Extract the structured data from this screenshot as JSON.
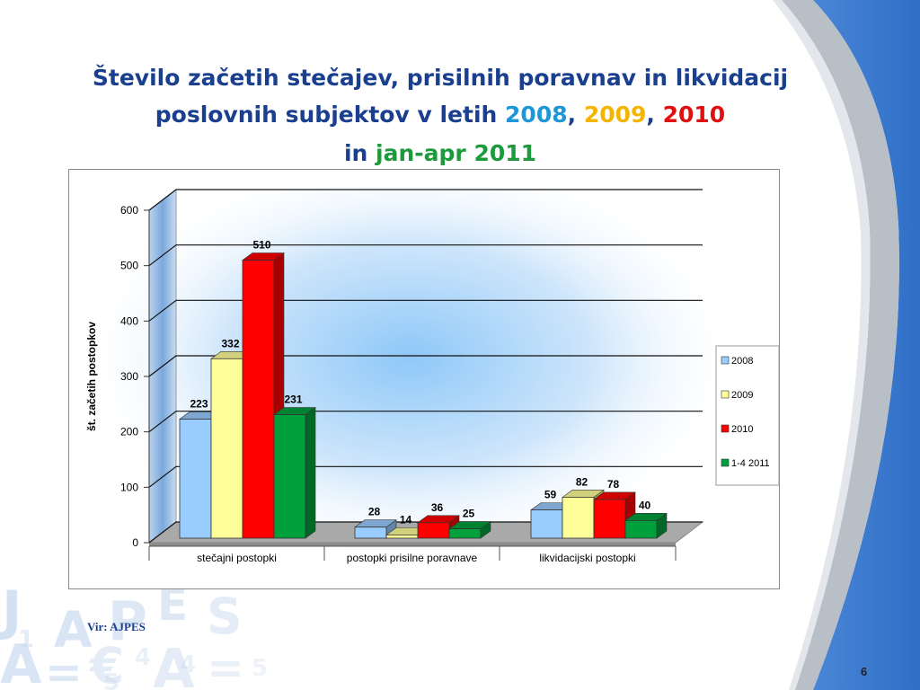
{
  "slide": {
    "title_line1": "Število začetih stečajev, prisilnih poravnav in likvidacij",
    "title_line2_prefix": "poslovnih subjektov v letih ",
    "year_2008": "2008",
    "sep1": ", ",
    "year_2009": "2009",
    "sep2": ", ",
    "year_2010": "2010",
    "title_line3_prefix": "in ",
    "period_2011": "jan-apr 2011",
    "source": "Vir: AJPES",
    "page_number": "6"
  },
  "colors": {
    "title": "#1a3f8f",
    "year_2008": "#1e96d8",
    "year_2009": "#f5b400",
    "year_2010": "#e01010",
    "period_2011": "#1c9a3c"
  },
  "chart_data": {
    "type": "bar",
    "categories": [
      "stečajni postopki",
      "postopki prisilne poravnave",
      "likvidacijski postopki"
    ],
    "series": [
      {
        "name": "2008",
        "values": [
          223,
          28,
          59
        ],
        "color": "#99ccff"
      },
      {
        "name": "2009",
        "values": [
          332,
          14,
          82
        ],
        "color": "#ffff99"
      },
      {
        "name": "2010",
        "values": [
          510,
          36,
          78
        ],
        "color": "#ff0000"
      },
      {
        "name": "1-4 2011",
        "values": [
          231,
          25,
          40
        ],
        "color": "#00a03c"
      }
    ],
    "ylabel": "št. začetih postopkov",
    "ylim": [
      0,
      600
    ],
    "yticks": [
      0,
      100,
      200,
      300,
      400,
      500,
      600
    ],
    "legend": "right",
    "grid": true,
    "three_d": true
  }
}
